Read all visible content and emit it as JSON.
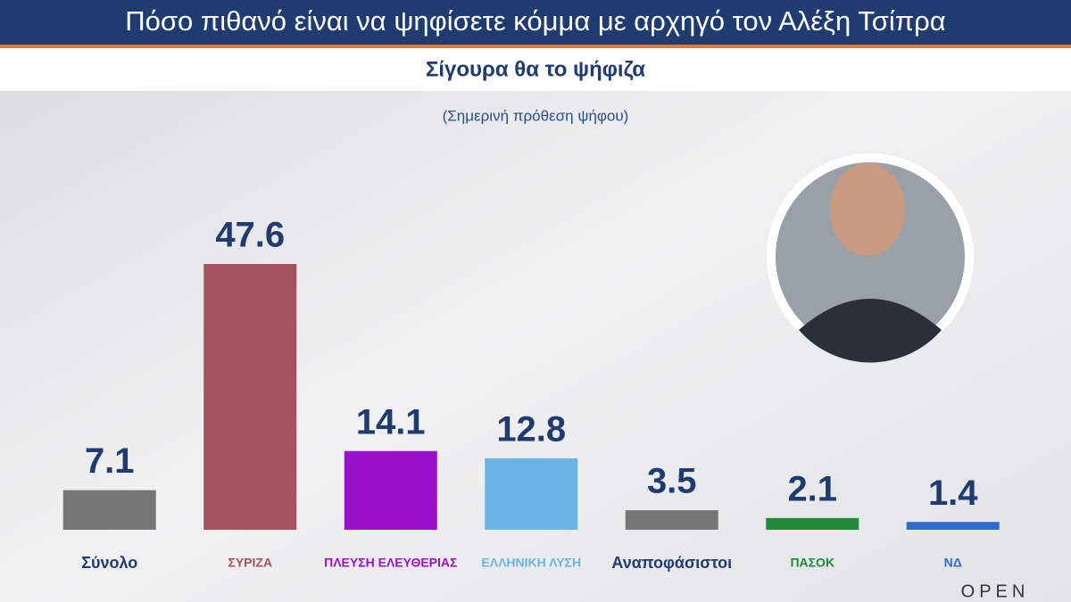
{
  "chart_data": {
    "type": "bar",
    "title": "Πόσο πιθανό είναι να ψηφίσετε κόμμα με αρχηγό τον Αλέξη Τσίπρα",
    "subtitle": "Σίγουρα θα το ψήφιζα",
    "note": "(Σημερινή πρόθεση ψήφου)",
    "categories": [
      "Σύνολο",
      "ΣΥΡΙΖΑ",
      "ΠΛΕΥΣΗ ΕΛΕΥΘΕΡΙΑΣ",
      "ΕΛΛΗΝΙΚΗ ΛΥΣΗ",
      "Αναποφάσιστοι",
      "ΠΑΣΟΚ",
      "ΝΔ"
    ],
    "values": [
      7.1,
      47.6,
      14.1,
      12.8,
      3.5,
      2.1,
      1.4
    ],
    "colors": [
      "#767676",
      "#a4525f",
      "#9a10cc",
      "#6db4e6",
      "#767676",
      "#1e8a3a",
      "#2f6cca"
    ],
    "channel": "OPEN"
  }
}
